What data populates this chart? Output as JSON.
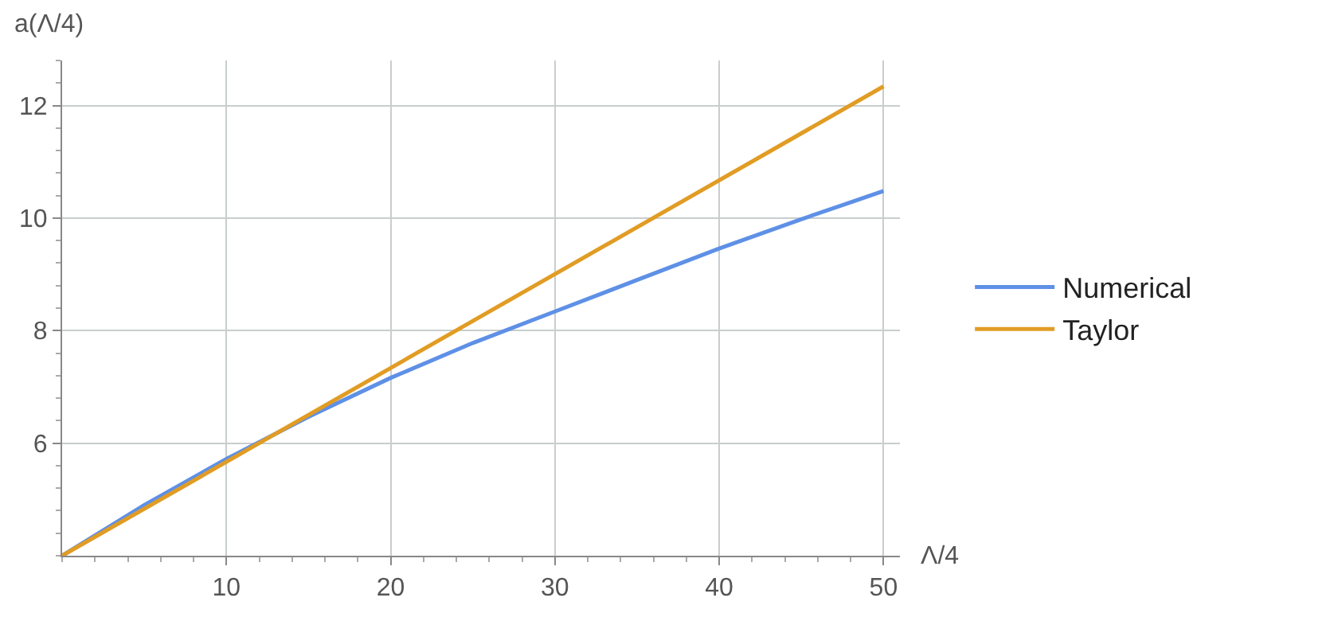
{
  "chart_data": {
    "type": "line",
    "xlabel": "Λ/4",
    "ylabel": "a(Λ/4)",
    "xlim": [
      0,
      51
    ],
    "ylim": [
      4,
      12.8
    ],
    "xticks": [
      10,
      20,
      30,
      40,
      50
    ],
    "yticks": [
      6,
      8,
      10,
      12
    ],
    "grid": true,
    "legend": "right",
    "line_style": "solid",
    "marker": "none",
    "series": [
      {
        "name": "Numerical",
        "color": "#5e90e6",
        "x": [
          0,
          5,
          10,
          15,
          20,
          25,
          30,
          35,
          40,
          45,
          50
        ],
        "values": [
          4.0,
          4.9,
          5.72,
          6.47,
          7.16,
          7.78,
          8.34,
          8.9,
          9.46,
          9.98,
          10.48
        ]
      },
      {
        "name": "Taylor",
        "color": "#e19c24",
        "x": [
          0,
          50
        ],
        "values": [
          4.0,
          12.34
        ]
      }
    ]
  }
}
